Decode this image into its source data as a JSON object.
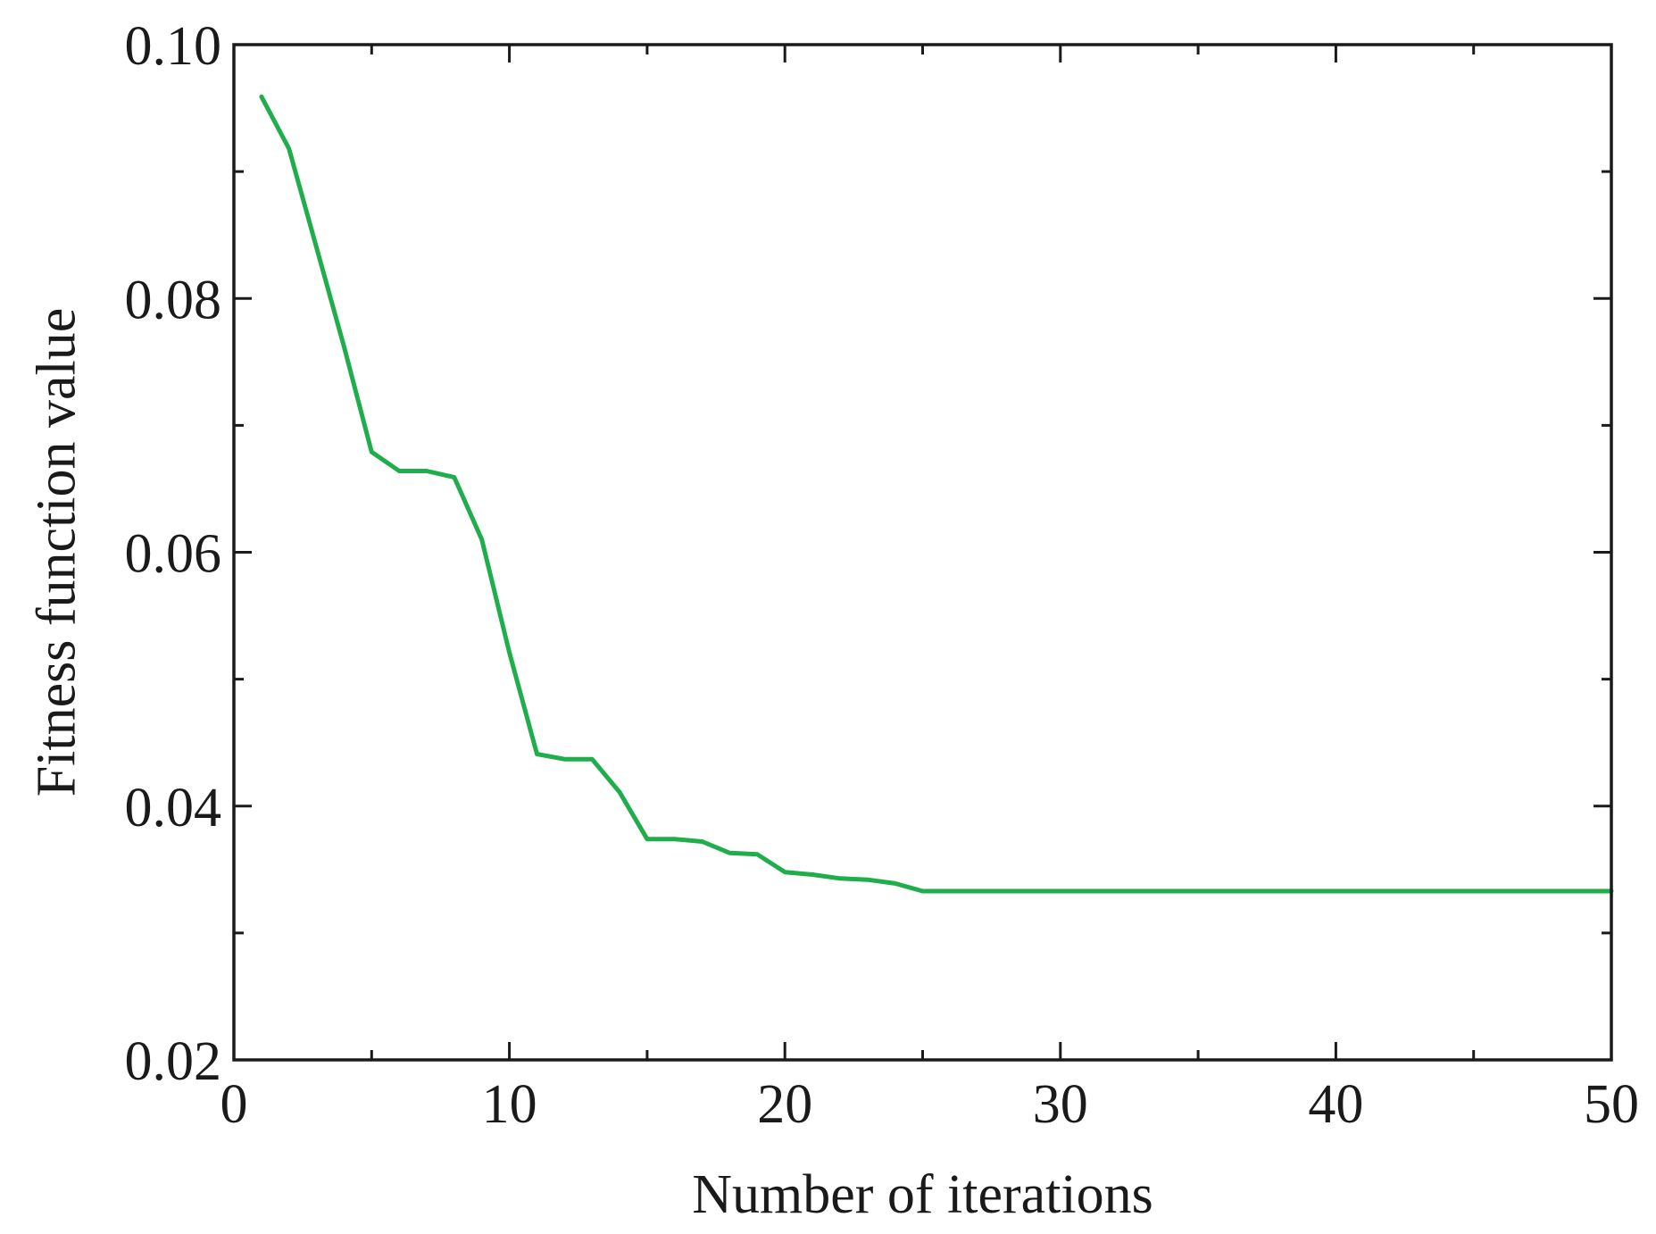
{
  "chart_data": {
    "type": "line",
    "title": "",
    "xlabel": "Number of iterations",
    "ylabel": "Fitness function value",
    "xlim": [
      0,
      50
    ],
    "ylim": [
      0.02,
      0.1
    ],
    "x_major_ticks": [
      0,
      10,
      20,
      30,
      40,
      50
    ],
    "x_major_tick_labels": [
      "0",
      "10",
      "20",
      "30",
      "40",
      "50"
    ],
    "x_minor_ticks": [
      5,
      15,
      25,
      35,
      45
    ],
    "y_major_ticks": [
      0.02,
      0.04,
      0.06,
      0.08,
      0.1
    ],
    "y_major_tick_labels": [
      "0.02",
      "0.04",
      "0.06",
      "0.08",
      "0.10"
    ],
    "y_minor_ticks": [
      0.03,
      0.05,
      0.07,
      0.09
    ],
    "grid": false,
    "legend": "none",
    "series": [
      {
        "color": "#1fae4b",
        "x": [
          1,
          2,
          3,
          4,
          5,
          6,
          7,
          8,
          9,
          10,
          11,
          12,
          13,
          14,
          15,
          16,
          17,
          18,
          19,
          20,
          21,
          22,
          23,
          24,
          25,
          26,
          27,
          28,
          29,
          30,
          31,
          32,
          33,
          34,
          35,
          36,
          37,
          38,
          39,
          40,
          41,
          42,
          43,
          44,
          45,
          46,
          47,
          48,
          49,
          50
        ],
        "y": [
          0.0959,
          0.0918,
          0.084,
          0.0762,
          0.0679,
          0.0664,
          0.0664,
          0.0659,
          0.061,
          0.0521,
          0.0441,
          0.0437,
          0.0437,
          0.0411,
          0.0374,
          0.0374,
          0.0372,
          0.0363,
          0.0362,
          0.0348,
          0.0346,
          0.0343,
          0.0342,
          0.0339,
          0.0333,
          0.0333,
          0.0333,
          0.0333,
          0.0333,
          0.0333,
          0.0333,
          0.0333,
          0.0333,
          0.0333,
          0.0333,
          0.0333,
          0.0333,
          0.0333,
          0.0333,
          0.0333,
          0.0333,
          0.0333,
          0.0333,
          0.0333,
          0.0333,
          0.0333,
          0.0333,
          0.0333,
          0.0333,
          0.0333
        ]
      }
    ]
  }
}
